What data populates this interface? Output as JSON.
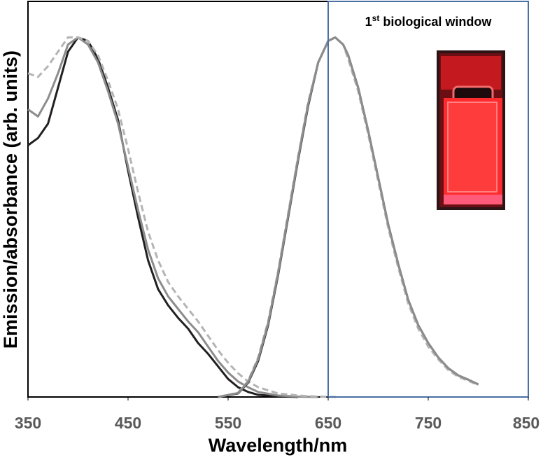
{
  "chart_data": {
    "type": "line",
    "x_label": "Wavelength/nm",
    "y_label": "Emission/absorbance (arb. units)",
    "xlim": [
      350,
      850
    ],
    "ylim": [
      0,
      1.1
    ],
    "xticks": [
      350,
      450,
      550,
      650,
      750,
      850
    ],
    "window": {
      "range": [
        650,
        850
      ],
      "color": "#4a6fa5",
      "label_number": "1",
      "label_suffix": "st",
      "label_text": "biological window"
    },
    "series": [
      {
        "color": "#231f20",
        "dash": false,
        "x": [
          350,
          360,
          370,
          380,
          390,
          400,
          410,
          420,
          430,
          440,
          450,
          460,
          470,
          480,
          490,
          500,
          510,
          520,
          530,
          540,
          550,
          560,
          570,
          580,
          600,
          620
        ],
        "values": [
          0.7,
          0.72,
          0.76,
          0.86,
          0.96,
          1.0,
          0.99,
          0.94,
          0.86,
          0.77,
          0.63,
          0.5,
          0.38,
          0.3,
          0.255,
          0.22,
          0.19,
          0.15,
          0.12,
          0.085,
          0.05,
          0.027,
          0.014,
          0.006,
          0.002,
          0
        ]
      },
      {
        "color": "#8c8c8c",
        "dash": false,
        "x": [
          350,
          360,
          370,
          380,
          390,
          400,
          410,
          420,
          430,
          440,
          450,
          460,
          470,
          480,
          490,
          500,
          510,
          520,
          530,
          540,
          550,
          560,
          570,
          580,
          600,
          620,
          640
        ],
        "values": [
          0.8,
          0.78,
          0.83,
          0.9,
          0.98,
          1.0,
          0.98,
          0.93,
          0.85,
          0.76,
          0.64,
          0.52,
          0.41,
          0.33,
          0.28,
          0.245,
          0.21,
          0.18,
          0.14,
          0.1,
          0.068,
          0.043,
          0.027,
          0.014,
          0.004,
          0.001,
          0
        ]
      },
      {
        "color": "#b4b4b4",
        "dash": true,
        "x": [
          350,
          360,
          370,
          380,
          390,
          400,
          410,
          420,
          430,
          440,
          450,
          460,
          470,
          480,
          490,
          500,
          510,
          520,
          530,
          540,
          550,
          560,
          570,
          580,
          600,
          620,
          640,
          660
        ],
        "values": [
          0.9,
          0.89,
          0.92,
          0.96,
          1.0,
          1.0,
          0.99,
          0.95,
          0.88,
          0.8,
          0.69,
          0.57,
          0.46,
          0.38,
          0.32,
          0.28,
          0.245,
          0.21,
          0.17,
          0.13,
          0.095,
          0.066,
          0.043,
          0.027,
          0.01,
          0.004,
          0.001,
          0
        ]
      },
      {
        "color": "#231f20",
        "dash": false,
        "x": [
          540,
          560,
          570,
          580,
          590,
          600,
          610,
          620,
          630,
          640,
          650,
          657,
          665,
          670,
          680,
          690,
          700,
          710,
          720,
          730,
          740,
          750,
          760,
          770,
          780,
          790,
          800
        ],
        "values": [
          0,
          0.01,
          0.04,
          0.1,
          0.2,
          0.34,
          0.5,
          0.66,
          0.81,
          0.93,
          0.99,
          1.0,
          0.98,
          0.95,
          0.86,
          0.74,
          0.61,
          0.48,
          0.37,
          0.27,
          0.2,
          0.15,
          0.11,
          0.08,
          0.06,
          0.048,
          0.035
        ]
      },
      {
        "color": "#b4b4b4",
        "dash": true,
        "x": [
          540,
          560,
          570,
          580,
          590,
          600,
          610,
          620,
          630,
          640,
          650,
          657,
          665,
          670,
          680,
          690,
          700,
          710,
          720,
          730,
          740,
          750,
          760,
          770,
          780,
          790,
          800
        ],
        "values": [
          0,
          0.012,
          0.045,
          0.11,
          0.21,
          0.35,
          0.51,
          0.67,
          0.82,
          0.93,
          0.99,
          1.0,
          0.98,
          0.94,
          0.85,
          0.73,
          0.6,
          0.47,
          0.36,
          0.26,
          0.19,
          0.14,
          0.105,
          0.075,
          0.056,
          0.045,
          0.033
        ]
      },
      {
        "color": "#8c8c8c",
        "dash": false,
        "x": [
          540,
          560,
          570,
          580,
          590,
          600,
          610,
          620,
          630,
          640,
          650,
          657,
          665,
          670,
          680,
          690,
          700,
          710,
          720,
          730,
          740,
          750,
          760,
          770,
          780,
          790,
          800
        ],
        "values": [
          0,
          0.011,
          0.042,
          0.105,
          0.205,
          0.345,
          0.505,
          0.665,
          0.815,
          0.93,
          0.99,
          1.0,
          0.98,
          0.95,
          0.86,
          0.74,
          0.61,
          0.48,
          0.37,
          0.27,
          0.2,
          0.15,
          0.11,
          0.08,
          0.06,
          0.048,
          0.035
        ]
      }
    ]
  }
}
